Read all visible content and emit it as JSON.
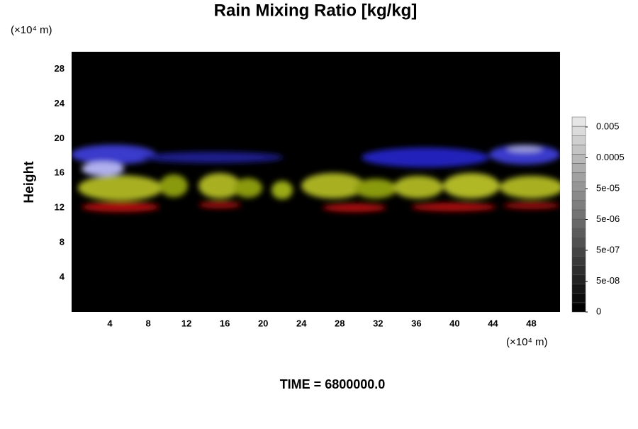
{
  "chart_data": {
    "type": "field",
    "title": "Rain Mixing Ratio [kg/kg]",
    "y_unit": "(×10⁴ m)",
    "x_unit": "(×10⁴ m)",
    "ylabel": "Height",
    "footer": "TIME = 6800000.0",
    "xlim": [
      0,
      51
    ],
    "xticks": [
      4,
      8,
      12,
      16,
      20,
      24,
      28,
      32,
      36,
      40,
      44,
      48
    ],
    "ylim": [
      0,
      30
    ],
    "yticks": [
      4,
      8,
      12,
      16,
      20,
      24,
      28
    ],
    "colorbar_ticks": [
      0,
      {
        "value": 5e-08,
        "label": "5e-08"
      },
      {
        "value": 5e-07,
        "label": "5e-07"
      },
      {
        "value": 5e-06,
        "label": "5e-06"
      },
      {
        "value": 5e-05,
        "label": "5e-05"
      },
      0.0005,
      0.005
    ]
  }
}
